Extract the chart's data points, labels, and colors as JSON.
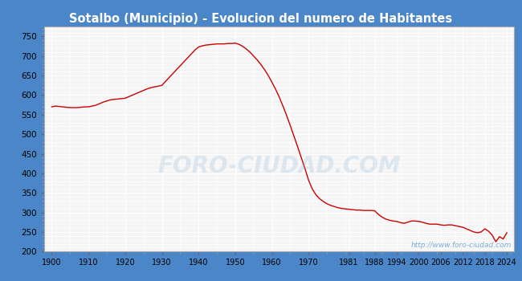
{
  "title": "Sotalbo (Municipio) - Evolucion del numero de Habitantes",
  "title_color": "white",
  "title_bg_color": "#4a86c8",
  "plot_bg_color": "#f5f5f5",
  "line_color": "#cc0000",
  "watermark_center": "FORO-CIUDAD.COM",
  "watermark_url": "http://www.foro-ciudad.com",
  "watermark_color": "#7badd4",
  "ylim": [
    200,
    775
  ],
  "yticks": [
    200,
    250,
    300,
    350,
    400,
    450,
    500,
    550,
    600,
    650,
    700,
    750
  ],
  "xtick_labels": [
    "1900",
    "1910",
    "1920",
    "1930",
    "1940",
    "1950",
    "1960",
    "1970",
    "1981",
    "1988",
    "1994",
    "2000",
    "2006",
    "2012",
    "2018",
    "2024"
  ],
  "data": [
    [
      1900,
      570
    ],
    [
      1901,
      572
    ],
    [
      1902,
      571
    ],
    [
      1903,
      570
    ],
    [
      1904,
      569
    ],
    [
      1905,
      568
    ],
    [
      1906,
      568
    ],
    [
      1907,
      568
    ],
    [
      1908,
      569
    ],
    [
      1909,
      570
    ],
    [
      1910,
      570
    ],
    [
      1911,
      572
    ],
    [
      1912,
      574
    ],
    [
      1913,
      578
    ],
    [
      1914,
      582
    ],
    [
      1915,
      585
    ],
    [
      1916,
      588
    ],
    [
      1917,
      589
    ],
    [
      1918,
      590
    ],
    [
      1919,
      591
    ],
    [
      1920,
      592
    ],
    [
      1921,
      596
    ],
    [
      1922,
      600
    ],
    [
      1923,
      604
    ],
    [
      1924,
      608
    ],
    [
      1925,
      612
    ],
    [
      1926,
      616
    ],
    [
      1927,
      619
    ],
    [
      1928,
      621
    ],
    [
      1929,
      623
    ],
    [
      1930,
      625
    ],
    [
      1931,
      635
    ],
    [
      1932,
      645
    ],
    [
      1933,
      655
    ],
    [
      1934,
      665
    ],
    [
      1935,
      675
    ],
    [
      1936,
      685
    ],
    [
      1937,
      695
    ],
    [
      1938,
      705
    ],
    [
      1939,
      715
    ],
    [
      1940,
      723
    ],
    [
      1941,
      726
    ],
    [
      1942,
      728
    ],
    [
      1943,
      729
    ],
    [
      1944,
      730
    ],
    [
      1945,
      731
    ],
    [
      1946,
      731
    ],
    [
      1947,
      731
    ],
    [
      1948,
      732
    ],
    [
      1949,
      732
    ],
    [
      1950,
      733
    ],
    [
      1951,
      730
    ],
    [
      1952,
      725
    ],
    [
      1953,
      718
    ],
    [
      1954,
      710
    ],
    [
      1955,
      700
    ],
    [
      1956,
      690
    ],
    [
      1957,
      678
    ],
    [
      1958,
      665
    ],
    [
      1959,
      650
    ],
    [
      1960,
      633
    ],
    [
      1961,
      615
    ],
    [
      1962,
      595
    ],
    [
      1963,
      572
    ],
    [
      1964,
      548
    ],
    [
      1965,
      522
    ],
    [
      1966,
      495
    ],
    [
      1967,
      468
    ],
    [
      1968,
      440
    ],
    [
      1969,
      412
    ],
    [
      1970,
      382
    ],
    [
      1971,
      360
    ],
    [
      1972,
      345
    ],
    [
      1973,
      335
    ],
    [
      1974,
      328
    ],
    [
      1975,
      322
    ],
    [
      1976,
      318
    ],
    [
      1977,
      315
    ],
    [
      1978,
      312
    ],
    [
      1979,
      310
    ],
    [
      1980,
      309
    ],
    [
      1981,
      308
    ],
    [
      1982,
      307
    ],
    [
      1983,
      306
    ],
    [
      1984,
      306
    ],
    [
      1985,
      305
    ],
    [
      1986,
      305
    ],
    [
      1987,
      305
    ],
    [
      1988,
      304
    ],
    [
      1989,
      295
    ],
    [
      1990,
      288
    ],
    [
      1991,
      283
    ],
    [
      1992,
      280
    ],
    [
      1993,
      278
    ],
    [
      1994,
      277
    ],
    [
      1995,
      274
    ],
    [
      1996,
      272
    ],
    [
      1997,
      275
    ],
    [
      1998,
      278
    ],
    [
      1999,
      278
    ],
    [
      2000,
      277
    ],
    [
      2001,
      275
    ],
    [
      2002,
      272
    ],
    [
      2003,
      270
    ],
    [
      2004,
      270
    ],
    [
      2005,
      270
    ],
    [
      2006,
      268
    ],
    [
      2007,
      267
    ],
    [
      2008,
      268
    ],
    [
      2009,
      268
    ],
    [
      2010,
      266
    ],
    [
      2011,
      264
    ],
    [
      2012,
      262
    ],
    [
      2013,
      258
    ],
    [
      2014,
      254
    ],
    [
      2015,
      250
    ],
    [
      2016,
      248
    ],
    [
      2017,
      250
    ],
    [
      2018,
      258
    ],
    [
      2019,
      252
    ],
    [
      2020,
      242
    ],
    [
      2021,
      225
    ],
    [
      2022,
      238
    ],
    [
      2023,
      232
    ],
    [
      2024,
      248
    ]
  ]
}
